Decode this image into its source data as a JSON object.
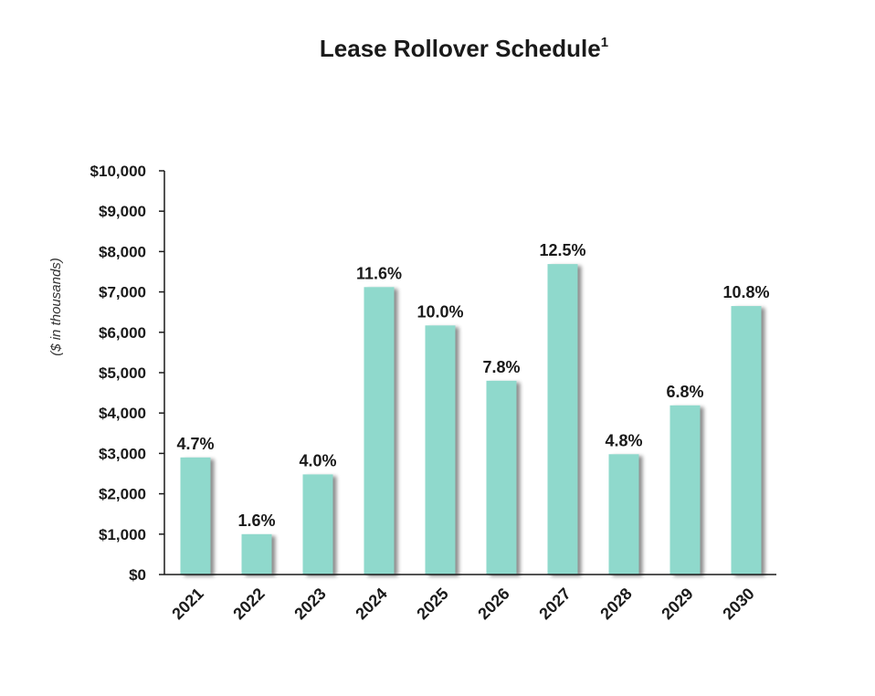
{
  "chart_data": {
    "type": "bar",
    "title": "Lease Rollover Schedule",
    "title_superscript": "1",
    "ylabel": "($ in thousands)",
    "xlabel": "",
    "categories": [
      "2021",
      "2022",
      "2023",
      "2024",
      "2025",
      "2026",
      "2027",
      "2028",
      "2029",
      "2030"
    ],
    "values": [
      2900,
      1000,
      2480,
      7120,
      6170,
      4800,
      7690,
      2980,
      4190,
      6650
    ],
    "data_labels": [
      "4.7%",
      "1.6%",
      "4.0%",
      "11.6%",
      "10.0%",
      "7.8%",
      "12.5%",
      "4.8%",
      "6.8%",
      "10.8%"
    ],
    "ylim": [
      0,
      10000
    ],
    "yticks": [
      0,
      1000,
      2000,
      3000,
      4000,
      5000,
      6000,
      7000,
      8000,
      9000,
      10000
    ],
    "ytick_labels": [
      "$0",
      "$1,000",
      "$2,000",
      "$3,000",
      "$4,000",
      "$5,000",
      "$6,000",
      "$7,000",
      "$8,000",
      "$9,000",
      "$10,000"
    ],
    "bar_color": "#8fd9cc",
    "shadow_color": "#b8b8b8",
    "grid": false,
    "legend": "none"
  }
}
